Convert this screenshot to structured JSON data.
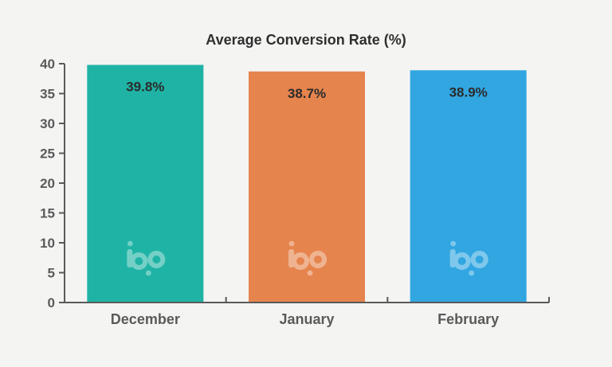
{
  "chart_data": {
    "type": "bar",
    "title": "Average Conversion Rate (%)",
    "categories": [
      "December",
      "January",
      "February"
    ],
    "values": [
      39.8,
      38.7,
      38.9
    ],
    "data_labels": [
      "39.8%",
      "38.7%",
      "38.9%"
    ],
    "colors": [
      "#1fb3a5",
      "#e6844e",
      "#31a6e1"
    ],
    "ylim": [
      0,
      40
    ],
    "yticks": [
      "0",
      "5",
      "10",
      "15",
      "20",
      "25",
      "30",
      "35",
      "40"
    ],
    "grid": false,
    "legend": "none"
  },
  "watermark": {
    "text": "bp",
    "icon": "bp-logo-icon"
  }
}
